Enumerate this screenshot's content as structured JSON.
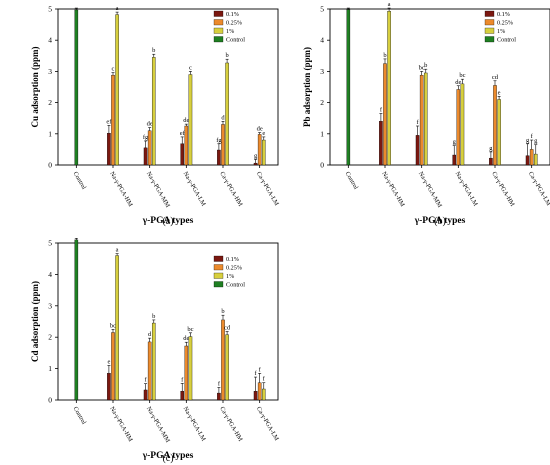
{
  "colors": {
    "s01": "#7b1810",
    "s025": "#ec8a2c",
    "s1": "#d7cf3e",
    "control": "#1f7f22"
  },
  "chart_data": [
    {
      "panel_label": "(a)",
      "type": "bar",
      "xlabel": "γ-PGA types",
      "ylabel": "Cu adsorption (ppm)",
      "ylim": [
        0,
        5
      ],
      "yticks": [
        0,
        1,
        2,
        3,
        4,
        5
      ],
      "categories": [
        "Control",
        "Na-γ-PGA-HM",
        "Na-γ-PGA-MM",
        "Na-γ-PGA-LM",
        "Ca-γ-PGA-HM",
        "Ca-γ-PGA-LM"
      ],
      "legend_position": "top-right",
      "series": [
        {
          "name": "0.1%",
          "color_key": "s01",
          "values": [
            null,
            1.02,
            0.55,
            0.68,
            0.48,
            0.06
          ],
          "errors": [
            0,
            0.25,
            0.22,
            0.22,
            0.2,
            0.12
          ],
          "letters": [
            "",
            "ef",
            "fg",
            "ef",
            "fg",
            "g"
          ]
        },
        {
          "name": "0.25%",
          "color_key": "s025",
          "values": [
            null,
            2.88,
            1.1,
            1.25,
            1.3,
            0.98
          ],
          "errors": [
            0,
            0.08,
            0.1,
            0.06,
            0.1,
            0.06
          ],
          "letters": [
            "",
            "c",
            "de",
            "de",
            "d",
            "de"
          ]
        },
        {
          "name": "1%",
          "color_key": "s1",
          "values": [
            null,
            4.82,
            3.45,
            2.9,
            3.27,
            0.8
          ],
          "errors": [
            0,
            0.08,
            0.1,
            0.1,
            0.12,
            0.1
          ],
          "letters": [
            "",
            "a",
            "b",
            "c",
            "b",
            "e"
          ]
        },
        {
          "name": "Control",
          "color_key": "control",
          "values": [
            4.97,
            null,
            null,
            null,
            null,
            null
          ],
          "errors": [
            0.06,
            0,
            0,
            0,
            0,
            0
          ],
          "letters": [
            "",
            "",
            "",
            "",
            "",
            ""
          ]
        }
      ]
    },
    {
      "panel_label": "(b)",
      "type": "bar",
      "xlabel": "γ-PGA types",
      "ylabel": "Pb adsorption (ppm)",
      "ylim": [
        0,
        5
      ],
      "yticks": [
        0,
        1,
        2,
        3,
        4,
        5
      ],
      "categories": [
        "Control",
        "Na-γ-PGA-HM",
        "Na-γ-PGA-MM",
        "Na-γ-PGA-LM",
        "Ca-γ-PGA-HM",
        "Ca-γ-PGA-LM"
      ],
      "legend_position": "top-right",
      "series": [
        {
          "name": "0.1%",
          "color_key": "s01",
          "values": [
            null,
            1.4,
            0.95,
            0.32,
            0.22,
            0.3
          ],
          "errors": [
            0,
            0.25,
            0.3,
            0.3,
            0.2,
            0.38
          ],
          "letters": [
            "",
            "f",
            "f",
            "g",
            "g",
            "g"
          ]
        },
        {
          "name": "0.25%",
          "color_key": "s025",
          "values": [
            null,
            3.25,
            2.88,
            2.42,
            2.55,
            0.5
          ],
          "errors": [
            0,
            0.15,
            0.12,
            0.12,
            0.15,
            0.3
          ],
          "letters": [
            "",
            "b",
            "bc",
            "de",
            "cd",
            "f"
          ]
        },
        {
          "name": "1%",
          "color_key": "s1",
          "values": [
            null,
            4.93,
            2.95,
            2.6,
            2.1,
            0.35
          ],
          "errors": [
            0,
            0.1,
            0.12,
            0.15,
            0.1,
            0.3
          ],
          "letters": [
            "",
            "a",
            "b",
            "bc",
            "e",
            "g"
          ]
        },
        {
          "name": "Control",
          "color_key": "control",
          "values": [
            4.98,
            null,
            null,
            null,
            null,
            null
          ],
          "errors": [
            0.05,
            0,
            0,
            0,
            0,
            0
          ],
          "letters": [
            "",
            "",
            "",
            "",
            "",
            ""
          ]
        }
      ]
    },
    {
      "panel_label": "(c)",
      "type": "bar",
      "xlabel": "γ-PGA types",
      "ylabel": "Cd adsorption (ppm)",
      "ylim": [
        0,
        5
      ],
      "yticks": [
        0,
        1,
        2,
        3,
        4,
        5
      ],
      "categories": [
        "Control",
        "Na-γ-PGA-HM",
        "Na-γ-PGA-MM",
        "Na-γ-PGA-LM",
        "Ca-γ-PGA-HM",
        "Ca-γ-PGA-LM"
      ],
      "legend_position": "top-right",
      "series": [
        {
          "name": "0.1%",
          "color_key": "s01",
          "values": [
            null,
            0.85,
            0.32,
            0.28,
            0.22,
            0.28
          ],
          "errors": [
            0,
            0.25,
            0.2,
            0.25,
            0.18,
            0.45
          ],
          "letters": [
            "",
            "e",
            "f",
            "f",
            "f",
            "f"
          ]
        },
        {
          "name": "0.25%",
          "color_key": "s025",
          "values": [
            null,
            2.15,
            1.85,
            1.72,
            2.55,
            0.55
          ],
          "errors": [
            0,
            0.1,
            0.12,
            0.12,
            0.15,
            0.3
          ],
          "letters": [
            "",
            "bc",
            "d",
            "de",
            "b",
            "f"
          ]
        },
        {
          "name": "1%",
          "color_key": "s1",
          "values": [
            null,
            4.6,
            2.45,
            2.02,
            2.08,
            0.35
          ],
          "errors": [
            0,
            0.06,
            0.1,
            0.12,
            0.1,
            0.2
          ],
          "letters": [
            "",
            "a",
            "b",
            "bc",
            "cd",
            "f"
          ]
        },
        {
          "name": "Control",
          "color_key": "control",
          "values": [
            5.1,
            null,
            null,
            null,
            null,
            null
          ],
          "errors": [
            0.05,
            0,
            0,
            0,
            0,
            0
          ],
          "letters": [
            "",
            "",
            "",
            "",
            "",
            ""
          ]
        }
      ]
    }
  ]
}
